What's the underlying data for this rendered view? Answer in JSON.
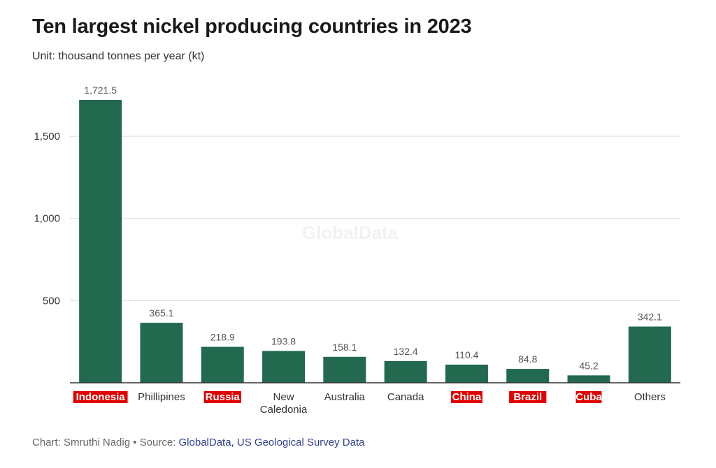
{
  "header": {
    "title": "Ten largest nickel producing countries in 2023",
    "subtitle": "Unit: thousand tonnes per year (kt)"
  },
  "watermark": "GlobalData",
  "footer": {
    "chart_prefix": "Chart: Smruthi Nadig • Source: ",
    "source_links": "GlobalData, US Geological Survey Data"
  },
  "colors": {
    "bar": "#22694f",
    "highlight_bg": "#e00000",
    "highlight_text": "#ffffff",
    "gridline": "#dddddd",
    "axis": "#333333",
    "value_label": "#555555"
  },
  "chart_data": {
    "type": "bar",
    "categories": [
      "Indonesia",
      "Phillipines",
      "Russia",
      "New Caledonia",
      "Australia",
      "Canada",
      "China",
      "Brazil",
      "Cuba",
      "Others"
    ],
    "category_lines": [
      [
        "Indonesia"
      ],
      [
        "Phillipines"
      ],
      [
        "Russia"
      ],
      [
        "New",
        "Caledonia"
      ],
      [
        "Australia"
      ],
      [
        "Canada"
      ],
      [
        "China"
      ],
      [
        "Brazil"
      ],
      [
        "Cuba"
      ],
      [
        "Others"
      ]
    ],
    "highlighted": [
      true,
      false,
      true,
      false,
      false,
      false,
      true,
      true,
      true,
      false
    ],
    "values": [
      1721.5,
      365.1,
      218.9,
      193.8,
      158.1,
      132.4,
      110.4,
      84.8,
      45.2,
      342.1
    ],
    "value_labels": [
      "1,721.5",
      "365.1",
      "218.9",
      "193.8",
      "158.1",
      "132.4",
      "110.4",
      "84.8",
      "45.2",
      "342.1"
    ],
    "yticks": [
      500,
      1000,
      1500
    ],
    "ytick_labels": [
      "500",
      "1,000",
      "1,500"
    ],
    "ylim": [
      0,
      1850
    ],
    "grid": true,
    "xlabel": "",
    "ylabel": ""
  }
}
